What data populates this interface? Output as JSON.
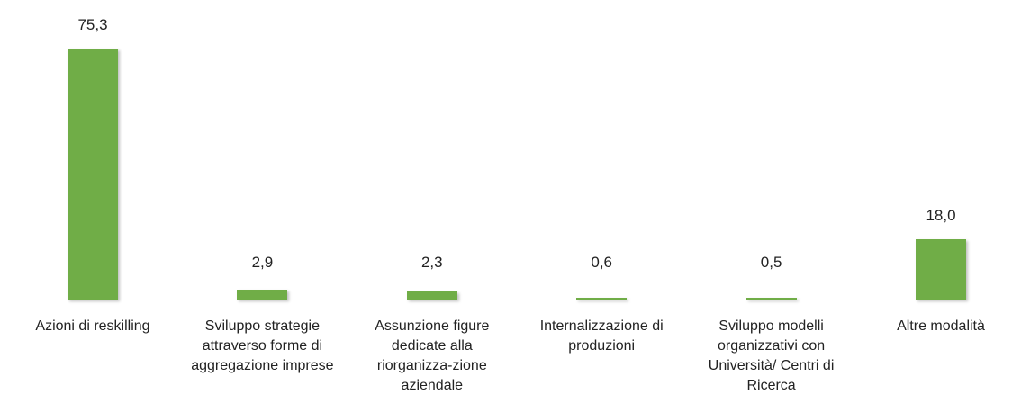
{
  "chart_data": {
    "type": "bar",
    "categories": [
      "Azioni di reskilling",
      "Sviluppo strategie attraverso forme di aggregazione imprese",
      "Assunzione figure dedicate alla riorganizza-zione aziendale",
      "Internalizzazione di produzioni",
      "Sviluppo  modelli organizzativi con Università/ Centri di Ricerca",
      "Altre modalità"
    ],
    "values": [
      75.3,
      2.9,
      2.3,
      0.6,
      0.5,
      18.0
    ],
    "value_labels": [
      "75,3",
      "2,9",
      "2,3",
      "0,6",
      "0,5",
      "18,0"
    ],
    "color": "#70ad47"
  }
}
